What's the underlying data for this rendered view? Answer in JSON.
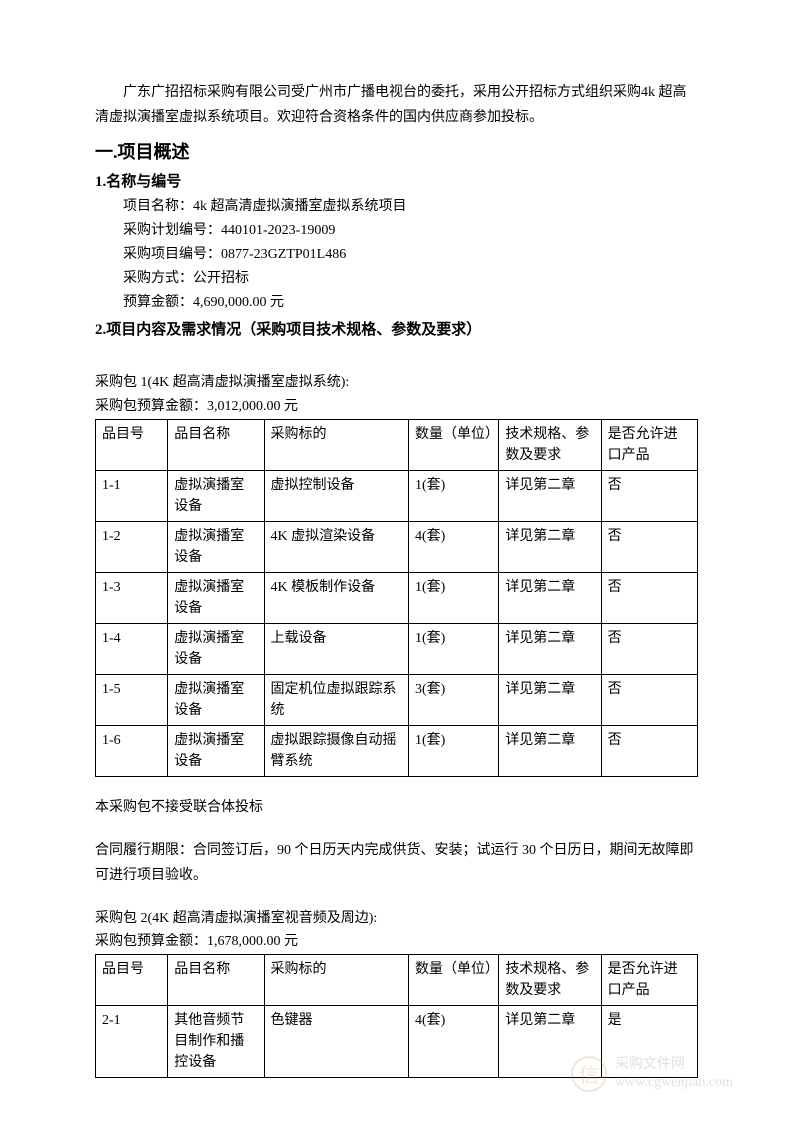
{
  "intro": "广东广招招标采购有限公司受广州市广播电视台的委托，采用公开招标方式组织采购4k 超高清虚拟演播室虚拟系统项目。欢迎符合资格条件的国内供应商参加投标。",
  "section1": {
    "title": "一.项目概述",
    "sub1": {
      "title": "1.名称与编号",
      "projectNameLabel": "项目名称：",
      "projectName": "4k 超高清虚拟演播室虚拟系统项目",
      "planNoLabel": "采购计划编号：",
      "planNo": "440101-2023-19009",
      "projNoLabel": "采购项目编号：",
      "projNo": "0877-23GZTP01L486",
      "methodLabel": "采购方式：",
      "method": "公开招标",
      "budgetLabel": "预算金额：",
      "budget": "4,690,000.00 元"
    },
    "sub2": {
      "title": "2.项目内容及需求情况（采购项目技术规格、参数及要求）"
    }
  },
  "package1": {
    "title": "采购包 1(4K 超高清虚拟演播室虚拟系统):",
    "budgetLabel": "采购包预算金额：",
    "budget": "3,012,000.00 元",
    "headers": {
      "c1": "品目号",
      "c2": "品目名称",
      "c3": "采购标的",
      "c4": "数量（单位）",
      "c5": "技术规格、参数及要求",
      "c6": "是否允许进口产品"
    },
    "rows": [
      {
        "c1": "1-1",
        "c2": "虚拟演播室设备",
        "c3": "虚拟控制设备",
        "c4": "1(套)",
        "c5": "详见第二章",
        "c6": "否"
      },
      {
        "c1": "1-2",
        "c2": "虚拟演播室设备",
        "c3": "4K 虚拟渲染设备",
        "c4": "4(套)",
        "c5": "详见第二章",
        "c6": "否"
      },
      {
        "c1": "1-3",
        "c2": "虚拟演播室设备",
        "c3": "4K 模板制作设备",
        "c4": "1(套)",
        "c5": "详见第二章",
        "c6": "否"
      },
      {
        "c1": "1-4",
        "c2": "虚拟演播室设备",
        "c3": "上载设备",
        "c4": "1(套)",
        "c5": "详见第二章",
        "c6": "否"
      },
      {
        "c1": "1-5",
        "c2": "虚拟演播室设备",
        "c3": "固定机位虚拟跟踪系统",
        "c4": "3(套)",
        "c5": "详见第二章",
        "c6": "否"
      },
      {
        "c1": "1-6",
        "c2": "虚拟演播室设备",
        "c3": "虚拟跟踪摄像自动摇臂系统",
        "c4": "1(套)",
        "c5": "详见第二章",
        "c6": "否"
      }
    ],
    "note1": "本采购包不接受联合体投标",
    "note2": "合同履行期限：合同签订后，90 个日历天内完成供货、安装；试运行 30 个日历日，期间无故障即可进行项目验收。"
  },
  "package2": {
    "title": "采购包 2(4K 超高清虚拟演播室视音频及周边):",
    "budgetLabel": "采购包预算金额：",
    "budget": "1,678,000.00 元",
    "headers": {
      "c1": "品目号",
      "c2": "品目名称",
      "c3": "采购标的",
      "c4": "数量（单位）",
      "c5": "技术规格、参数及要求",
      "c6": "是否允许进口产品"
    },
    "rows": [
      {
        "c1": "2-1",
        "c2": "其他音频节目制作和播控设备",
        "c3": "色键器",
        "c4": "4(套)",
        "c5": "详见第二章",
        "c6": "是"
      }
    ]
  },
  "watermark": {
    "icon": "信",
    "line1": "采购文件网",
    "line2": "www.cgwenjian.com"
  }
}
